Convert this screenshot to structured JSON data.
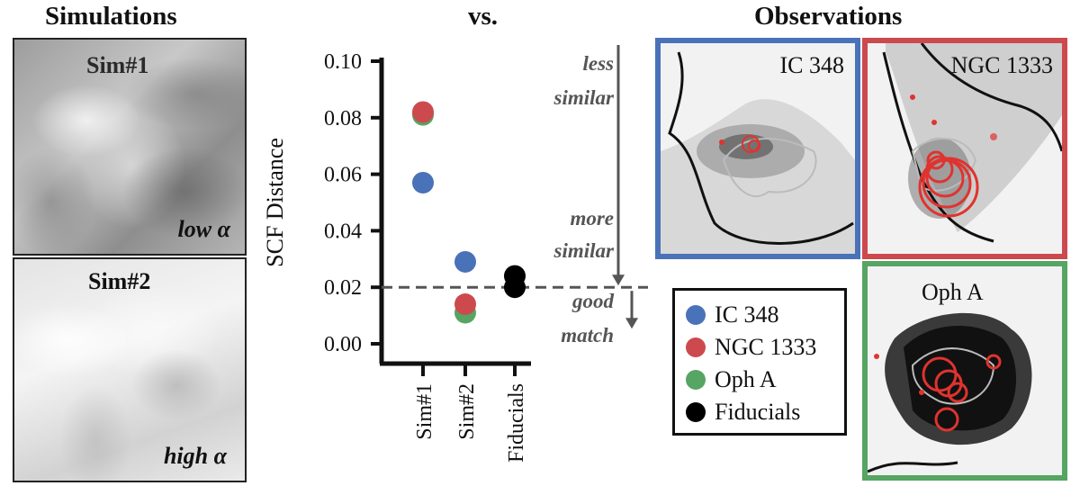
{
  "headers": {
    "simulations": "Simulations",
    "vs": "vs.",
    "observations": "Observations"
  },
  "simulations": [
    {
      "title": "Sim#1",
      "alpha_label": "low α"
    },
    {
      "title": "Sim#2",
      "alpha_label": "high α"
    }
  ],
  "annotations": {
    "less_similar_1": "less",
    "less_similar_2": "similar",
    "more_similar_1": "more",
    "more_similar_2": "similar",
    "good_match_1": "good",
    "good_match_2": "match"
  },
  "observations": [
    {
      "name": "IC 348",
      "color": "#4a72b8"
    },
    {
      "name": "NGC 1333",
      "color": "#cc4a4e"
    },
    {
      "name": "Oph A",
      "color": "#56a563"
    }
  ],
  "legend": [
    {
      "label": "IC 348",
      "color": "#4a72b8"
    },
    {
      "label": "NGC 1333",
      "color": "#cc4a4e"
    },
    {
      "label": "Oph A",
      "color": "#56a563"
    },
    {
      "label": "Fiducials",
      "color": "#000000"
    }
  ],
  "chart_data": {
    "type": "scatter",
    "title": "",
    "xlabel": "",
    "ylabel": "SCF Distance",
    "categories": [
      "Sim#1",
      "Sim#2",
      "Fiducials"
    ],
    "ylim": [
      0,
      0.1
    ],
    "yticks": [
      "0.00",
      "0.02",
      "0.04",
      "0.06",
      "0.08",
      "0.10"
    ],
    "threshold": 0.02,
    "series": [
      {
        "name": "IC 348",
        "color": "#4a72b8",
        "points": [
          {
            "x": "Sim#1",
            "y": 0.057
          },
          {
            "x": "Sim#2",
            "y": 0.029
          }
        ]
      },
      {
        "name": "Oph A",
        "color": "#56a563",
        "points": [
          {
            "x": "Sim#1",
            "y": 0.081
          },
          {
            "x": "Sim#2",
            "y": 0.011
          }
        ]
      },
      {
        "name": "NGC 1333",
        "color": "#cc4a4e",
        "points": [
          {
            "x": "Sim#1",
            "y": 0.082
          },
          {
            "x": "Sim#2",
            "y": 0.014
          }
        ]
      },
      {
        "name": "Fiducials",
        "color": "#000000",
        "points": [
          {
            "x": "Fiducials",
            "y": 0.024
          },
          {
            "x": "Fiducials",
            "y": 0.02
          }
        ]
      }
    ]
  }
}
